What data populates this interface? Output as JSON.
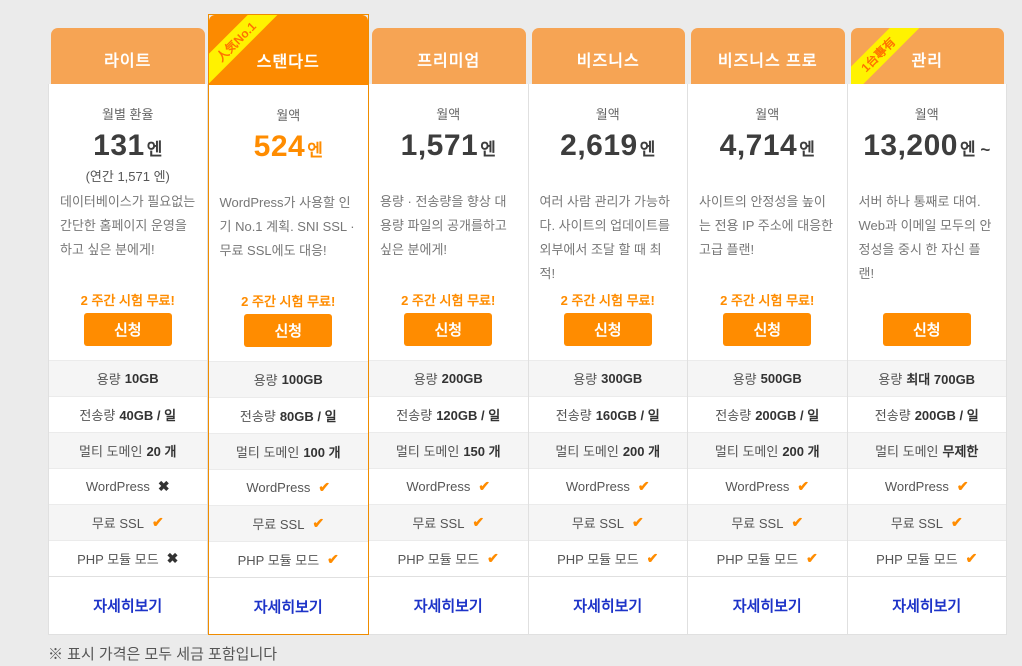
{
  "colors": {
    "accent_orange": "#ff8c00",
    "header_normal": "#f6a454",
    "header_featured": "#fc8a00",
    "featured_outline": "#ef8c00",
    "ribbon_yellow": "#fff200",
    "ribbon_text": "#ff7300",
    "link_blue": "#1d33c8",
    "row_alt_gray": "#f5f5f5",
    "check_color": "#ff8c00",
    "cross_color": "#333333"
  },
  "icons": {
    "check_glyph": "✔",
    "cross_glyph": "✖"
  },
  "footer": {
    "note": "※ 표시 가격은 모두 세금 포함입니다"
  },
  "plans": [
    {
      "name": "라이트",
      "price_label": "월별 환율",
      "price": "131",
      "price_unit": "엔",
      "price_note": "(연간 1,571 엔)",
      "description": "데이터베이스가 필요없는 간단한 홈페이지 운영을 하고 싶은 분에게!",
      "trial": "2 주간 시험 무료!",
      "apply_label": "신청",
      "detail_label": "자세히보기",
      "features": [
        {
          "label": "용량",
          "value": "10GB"
        },
        {
          "label": "전송량",
          "value": "40GB / 일"
        },
        {
          "label": "멀티 도메인",
          "value": "20 개"
        },
        {
          "label": "WordPress",
          "mark": "cross"
        },
        {
          "label": "무료 SSL",
          "mark": "check"
        },
        {
          "label": "PHP 모듈 모드",
          "mark": "cross"
        }
      ]
    },
    {
      "name": "스탠다드",
      "ribbon": "人気No.1",
      "price_label": "월액",
      "price": "524",
      "price_unit": "엔",
      "description": "WordPress가 사용할 인기 No.1 계획. SNI SSL · 무료 SSL에도 대응!",
      "trial": "2 주간 시험 무료!",
      "apply_label": "신청",
      "detail_label": "자세히보기",
      "features": [
        {
          "label": "용량",
          "value": "100GB"
        },
        {
          "label": "전송량",
          "value": "80GB / 일"
        },
        {
          "label": "멀티 도메인",
          "value": "100 개"
        },
        {
          "label": "WordPress",
          "mark": "check"
        },
        {
          "label": "무료 SSL",
          "mark": "check"
        },
        {
          "label": "PHP 모듈 모드",
          "mark": "check"
        }
      ]
    },
    {
      "name": "프리미엄",
      "price_label": "월액",
      "price": "1,571",
      "price_unit": "엔",
      "description": "용량 · 전송량을 향상 대용량 파일의 공개를하고 싶은 분에게!",
      "trial": "2 주간 시험 무료!",
      "apply_label": "신청",
      "detail_label": "자세히보기",
      "features": [
        {
          "label": "용량",
          "value": "200GB"
        },
        {
          "label": "전송량",
          "value": "120GB / 일"
        },
        {
          "label": "멀티 도메인",
          "value": "150 개"
        },
        {
          "label": "WordPress",
          "mark": "check"
        },
        {
          "label": "무료 SSL",
          "mark": "check"
        },
        {
          "label": "PHP 모듈 모드",
          "mark": "check"
        }
      ]
    },
    {
      "name": "비즈니스",
      "price_label": "월액",
      "price": "2,619",
      "price_unit": "엔",
      "description": "여러 사람 관리가 가능하다. 사이트의 업데이트를 외부에서 조달 할 때 최적!",
      "trial": "2 주간 시험 무료!",
      "apply_label": "신청",
      "detail_label": "자세히보기",
      "features": [
        {
          "label": "용량",
          "value": "300GB"
        },
        {
          "label": "전송량",
          "value": "160GB / 일"
        },
        {
          "label": "멀티 도메인",
          "value": "200 개"
        },
        {
          "label": "WordPress",
          "mark": "check"
        },
        {
          "label": "무료 SSL",
          "mark": "check"
        },
        {
          "label": "PHP 모듈 모드",
          "mark": "check"
        }
      ]
    },
    {
      "name": "비즈니스 프로",
      "price_label": "월액",
      "price": "4,714",
      "price_unit": "엔",
      "description": "사이트의 안정성을 높이는 전용 IP 주소에 대응한 고급 플랜!",
      "trial": "2 주간 시험 무료!",
      "apply_label": "신청",
      "detail_label": "자세히보기",
      "features": [
        {
          "label": "용량",
          "value": "500GB"
        },
        {
          "label": "전송량",
          "value": "200GB / 일"
        },
        {
          "label": "멀티 도메인",
          "value": "200 개"
        },
        {
          "label": "WordPress",
          "mark": "check"
        },
        {
          "label": "무료 SSL",
          "mark": "check"
        },
        {
          "label": "PHP 모듈 모드",
          "mark": "check"
        }
      ]
    },
    {
      "name": "관리",
      "ribbon": "1台專有",
      "price_label": "월액",
      "price": "13,200",
      "price_unit": "엔 ~",
      "description": "서버 하나 통째로 대여. Web과 이메일 모두의 안정성을 중시 한 자신 플랜!",
      "apply_label": "신청",
      "detail_label": "자세히보기",
      "features": [
        {
          "label": "용량",
          "value": "최대 700GB"
        },
        {
          "label": "전송량",
          "value": "200GB / 일"
        },
        {
          "label": "멀티 도메인",
          "value": "무제한"
        },
        {
          "label": "WordPress",
          "mark": "check"
        },
        {
          "label": "무료 SSL",
          "mark": "check"
        },
        {
          "label": "PHP 모듈 모드",
          "mark": "check"
        }
      ]
    }
  ]
}
